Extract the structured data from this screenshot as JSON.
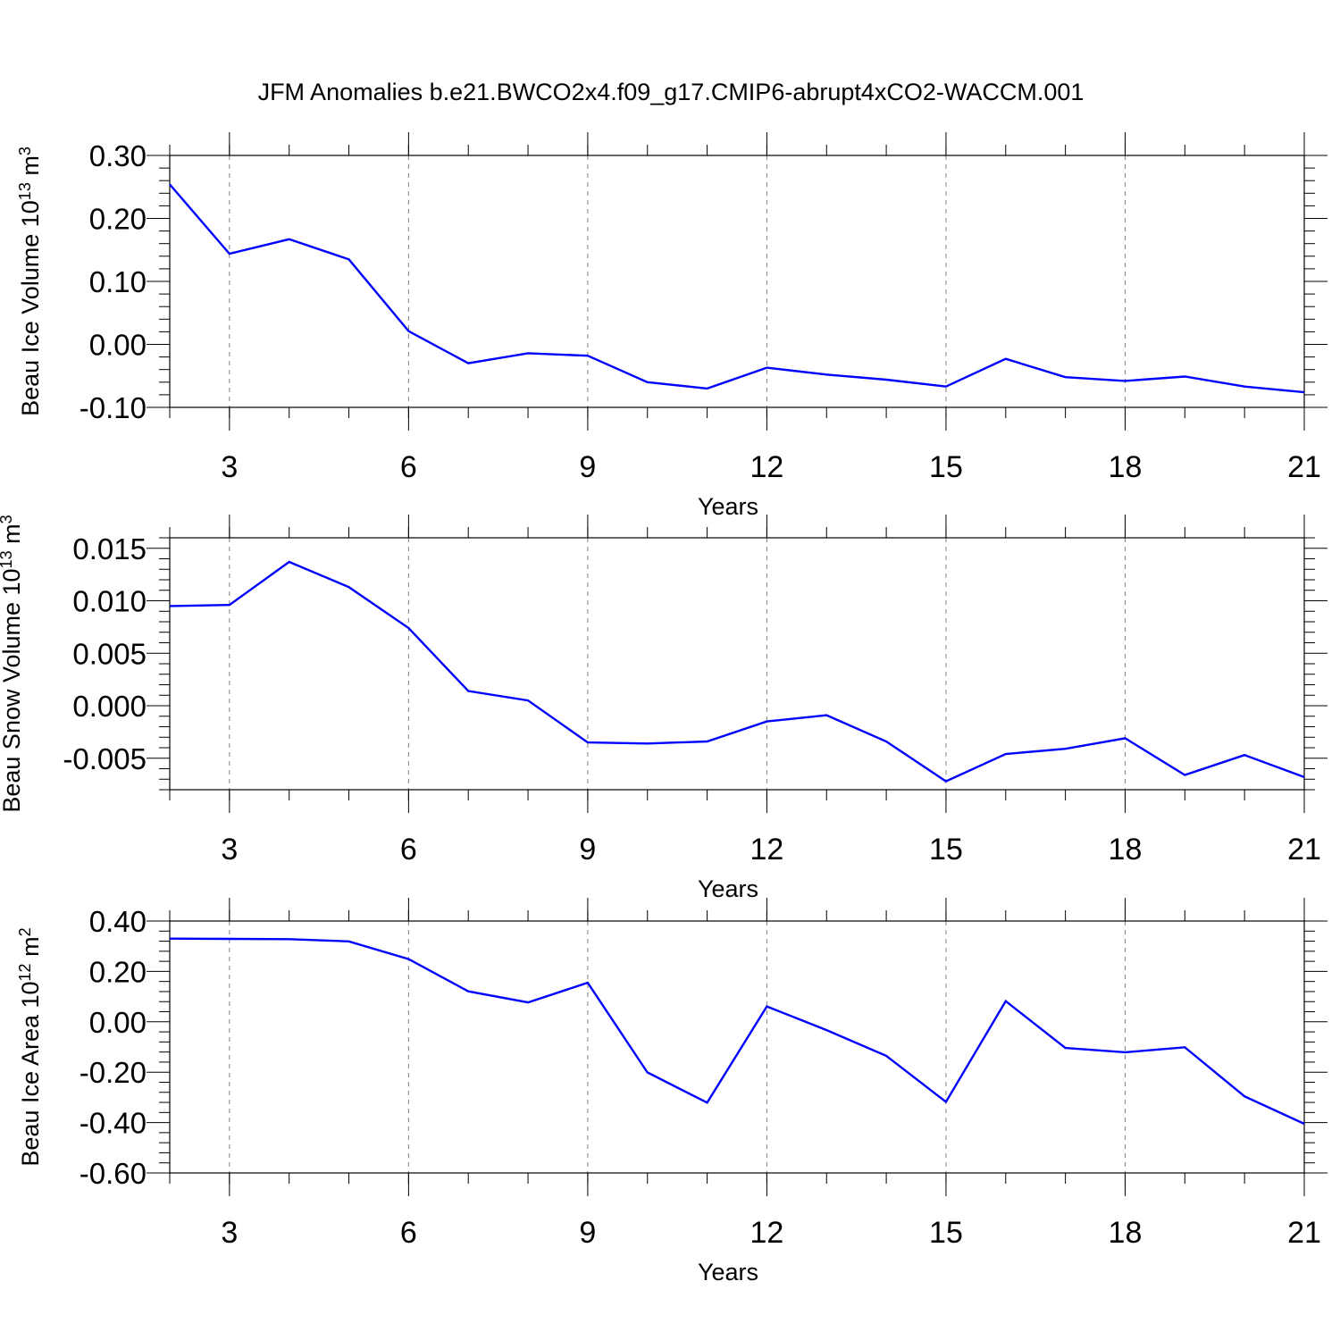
{
  "title": "JFM Anomalies b.e21.BWCO2x4.f09_g17.CMIP6-abrupt4xCO2-WACCM.001",
  "colors": {
    "line": "#0000ff",
    "frame": "#000000",
    "grid": "#808080",
    "background": "#ffffff"
  },
  "chart_data": [
    {
      "type": "line",
      "title": "",
      "ylabel_main": "Beau Ice Volume 10",
      "ylabel_exp": "13",
      "ylabel_unit": " m",
      "ylabel_unit_exp": "3",
      "xlabel": "Years",
      "xlim": [
        2,
        21
      ],
      "ylim": [
        -0.1,
        0.3
      ],
      "xticks": [
        3,
        6,
        9,
        12,
        15,
        18,
        21
      ],
      "xtick_labels": [
        "3",
        "6",
        "9",
        "12",
        "15",
        "18",
        "21"
      ],
      "yticks": [
        -0.1,
        0.0,
        0.1,
        0.2,
        0.3
      ],
      "ytick_labels": [
        "-0.10",
        "0.00",
        "0.10",
        "0.20",
        "0.30"
      ],
      "grid": "vertical dashed at major x ticks",
      "series": [
        {
          "x": [
            2,
            3,
            4,
            5,
            6,
            7,
            8,
            9,
            10,
            11,
            12,
            13,
            14,
            15,
            16,
            17,
            18,
            19,
            20,
            21
          ],
          "values": [
            0.254,
            0.144,
            0.167,
            0.135,
            0.021,
            -0.03,
            -0.014,
            -0.018,
            -0.06,
            -0.07,
            -0.037,
            -0.048,
            -0.056,
            -0.067,
            -0.023,
            -0.052,
            -0.058,
            -0.051,
            -0.067,
            -0.076
          ]
        }
      ]
    },
    {
      "type": "line",
      "title": "",
      "ylabel_main": "Beau Snow Volume 10",
      "ylabel_exp": "13",
      "ylabel_unit": " m",
      "ylabel_unit_exp": "3",
      "xlabel": "Years",
      "xlim": [
        2,
        21
      ],
      "ylim": [
        -0.008,
        0.016
      ],
      "xticks": [
        3,
        6,
        9,
        12,
        15,
        18,
        21
      ],
      "xtick_labels": [
        "3",
        "6",
        "9",
        "12",
        "15",
        "18",
        "21"
      ],
      "yticks": [
        -0.005,
        0.0,
        0.005,
        0.01,
        0.015
      ],
      "ytick_labels": [
        "-0.005",
        "0.000",
        "0.005",
        "0.010",
        "0.015"
      ],
      "grid": "vertical dashed at major x ticks",
      "series": [
        {
          "x": [
            2,
            3,
            4,
            5,
            6,
            7,
            8,
            9,
            10,
            11,
            12,
            13,
            14,
            15,
            16,
            17,
            18,
            19,
            20,
            21
          ],
          "values": [
            0.0095,
            0.0096,
            0.0137,
            0.0113,
            0.0074,
            0.0014,
            0.0005,
            -0.0035,
            -0.0036,
            -0.0034,
            -0.0015,
            -0.0009,
            -0.0034,
            -0.0072,
            -0.0046,
            -0.0041,
            -0.0031,
            -0.0066,
            -0.0047,
            -0.0068
          ]
        }
      ]
    },
    {
      "type": "line",
      "title": "",
      "ylabel_main": "Beau Ice Area 10",
      "ylabel_exp": "12",
      "ylabel_unit": " m",
      "ylabel_unit_exp": "2",
      "xlabel": "Years",
      "xlim": [
        2,
        21
      ],
      "ylim": [
        -0.6,
        0.4
      ],
      "xticks": [
        3,
        6,
        9,
        12,
        15,
        18,
        21
      ],
      "xtick_labels": [
        "3",
        "6",
        "9",
        "12",
        "15",
        "18",
        "21"
      ],
      "yticks": [
        -0.6,
        -0.4,
        -0.2,
        0.0,
        0.2,
        0.4
      ],
      "ytick_labels": [
        "-0.60",
        "-0.40",
        "-0.20",
        "0.00",
        "0.20",
        "0.40"
      ],
      "grid": "vertical dashed at major x ticks",
      "series": [
        {
          "x": [
            2,
            3,
            4,
            5,
            6,
            7,
            8,
            9,
            10,
            11,
            12,
            13,
            14,
            15,
            16,
            17,
            18,
            19,
            20,
            21
          ],
          "values": [
            0.33,
            0.329,
            0.328,
            0.319,
            0.249,
            0.121,
            0.077,
            0.155,
            -0.201,
            -0.321,
            0.061,
            -0.033,
            -0.135,
            -0.318,
            0.082,
            -0.104,
            -0.121,
            -0.101,
            -0.296,
            -0.405
          ]
        }
      ]
    }
  ]
}
